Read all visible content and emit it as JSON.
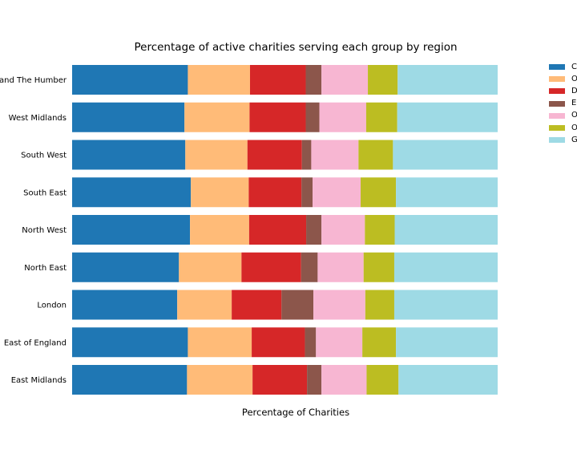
{
  "chart_data": {
    "type": "bar",
    "orientation": "horizontal",
    "stacked": true,
    "title": "Percentage of active charities serving each group by region",
    "xlabel": "Percentage of Charities",
    "ylabel": "",
    "x_axis_visible": false,
    "grid": false,
    "xlim": [
      0,
      100
    ],
    "legend_position": "outside-right",
    "categories": [
      "East Midlands",
      "East of England",
      "London",
      "North East",
      "North West",
      "South East",
      "South West",
      "West Midlands",
      "Yorkshire and The Humber"
    ],
    "category_labels_shown": [
      "East Midlands",
      "East of England",
      "London",
      "North East",
      "North West",
      "South East",
      "South West",
      "West Midlands",
      "and The Humber"
    ],
    "series": [
      {
        "name": "C",
        "color": "#1f77b4",
        "values": [
          27.0,
          27.2,
          24.7,
          25.1,
          27.7,
          27.9,
          26.6,
          26.4,
          27.2
        ]
      },
      {
        "name": "O",
        "color": "#ffbb78",
        "values": [
          15.4,
          15.0,
          12.8,
          14.7,
          13.9,
          13.6,
          14.6,
          15.3,
          14.6
        ]
      },
      {
        "name": "D",
        "color": "#d62728",
        "values": [
          12.8,
          12.5,
          11.7,
          14.0,
          13.4,
          12.4,
          12.8,
          13.2,
          13.1
        ]
      },
      {
        "name": "E",
        "color": "#8c564b",
        "values": [
          3.4,
          2.6,
          7.5,
          3.9,
          3.6,
          2.6,
          2.2,
          3.2,
          3.7
        ]
      },
      {
        "name": "O",
        "color": "#f7b6d2",
        "values": [
          10.6,
          10.9,
          12.2,
          10.8,
          10.2,
          11.3,
          11.1,
          11.0,
          10.9
        ]
      },
      {
        "name": "O",
        "color": "#bcbd22",
        "values": [
          7.5,
          7.9,
          6.8,
          7.2,
          7.0,
          8.3,
          8.1,
          7.3,
          7.0
        ]
      },
      {
        "name": "G",
        "color": "#9edae5",
        "values": [
          23.3,
          23.9,
          24.3,
          24.3,
          24.2,
          23.9,
          24.6,
          23.6,
          23.5
        ]
      }
    ]
  }
}
